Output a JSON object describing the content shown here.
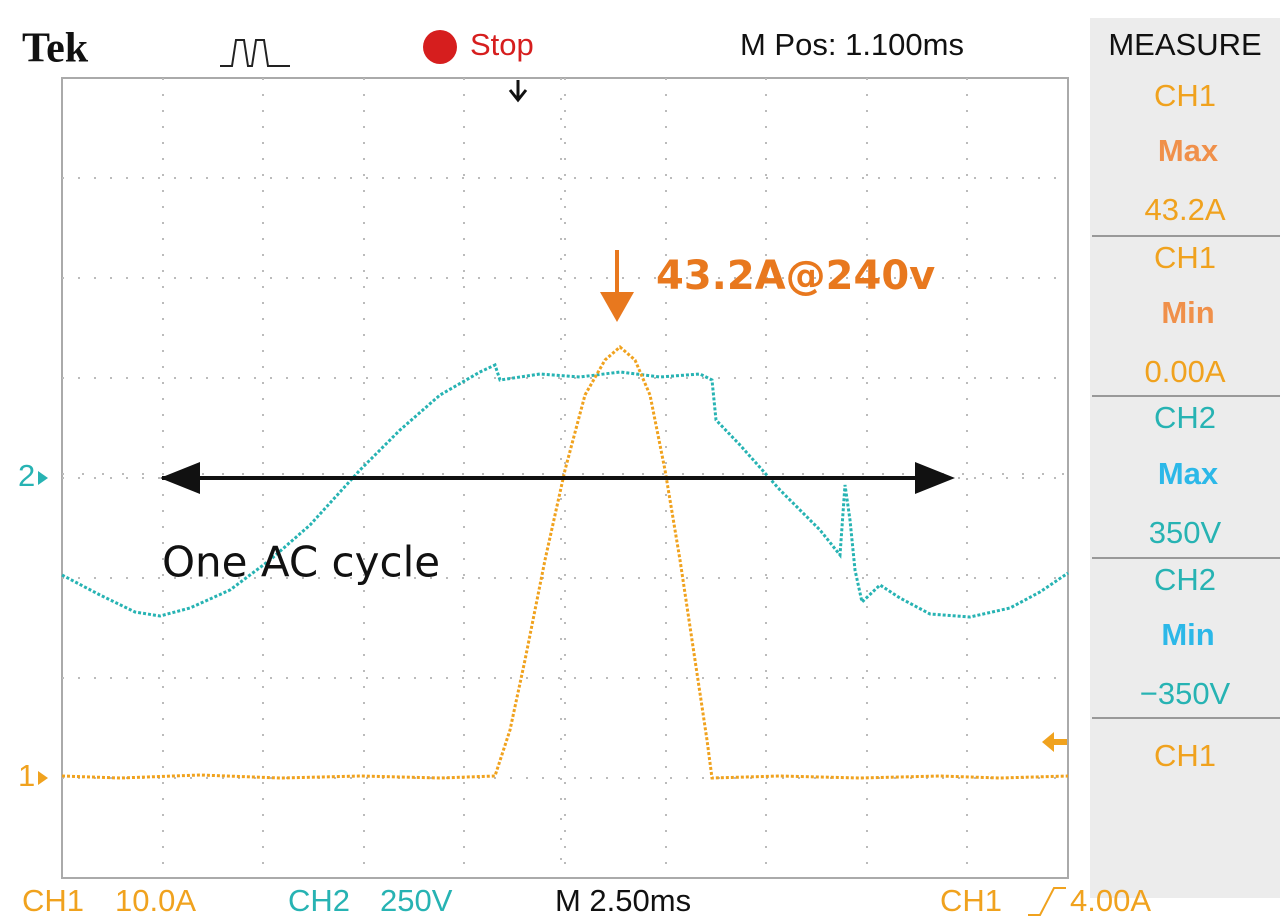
{
  "header": {
    "brand": "Tek",
    "status": "Stop",
    "position": "M Pos: 1.100ms"
  },
  "measure": {
    "title": "MEASURE",
    "items": [
      {
        "channel": "CH1",
        "stat": "Max",
        "value": "43.2A"
      },
      {
        "channel": "CH1",
        "stat": "Min",
        "value": "0.00A"
      },
      {
        "channel": "CH2",
        "stat": "Max",
        "value": "350V"
      },
      {
        "channel": "CH2",
        "stat": "Min",
        "value": "−350V"
      }
    ],
    "last": "CH1"
  },
  "markers": {
    "ch2": "2",
    "ch1": "1"
  },
  "annotations": {
    "peak": "43.2A@240v",
    "cycle": "One AC cycle"
  },
  "footer": {
    "ch1": "CH1",
    "ch1_scale": "10.0A",
    "ch2": "CH2",
    "ch2_scale": "250V",
    "timebase": "M 2.50ms",
    "trigger_channel": "CH1",
    "trigger_level": "4.00A"
  }
}
